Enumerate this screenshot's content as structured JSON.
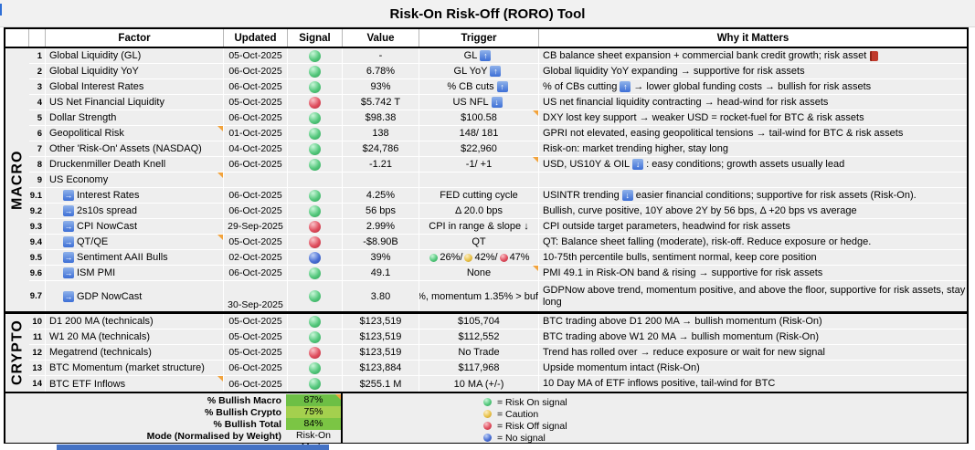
{
  "title": "Risk-On Risk-Off (RORO) Tool",
  "columns": [
    "Factor",
    "Updated",
    "Signal",
    "Value",
    "Trigger",
    "Why it Matters"
  ],
  "signal_colors": {
    "green": "#55c87d",
    "red": "#e04f5f",
    "blue": "#4a6fd4",
    "yellow": "#e8c24a"
  },
  "sections": [
    {
      "label": "MACRO",
      "rows": [
        {
          "num": "1",
          "factor": "Global Liquidity (GL)",
          "updated": "05-Oct-2025",
          "signal": "green",
          "value": "-",
          "trigger": "GL [up]",
          "why": "CB balance sheet expansion + commercial bank credit growth; risk asset [book]",
          "comments": []
        },
        {
          "num": "2",
          "factor": "Global Liquidity YoY",
          "updated": "06-Oct-2025",
          "signal": "green",
          "value": "6.78%",
          "trigger": "GL YoY [up]",
          "why": "Global liquidity YoY expanding → supportive for risk assets",
          "comments": []
        },
        {
          "num": "3",
          "factor": "Global Interest Rates",
          "updated": "06-Oct-2025",
          "signal": "green",
          "value": "93%",
          "trigger": "% CB cuts [up]",
          "why": "% of CBs cutting [up] → lower global funding costs → bullish for risk assets",
          "comments": []
        },
        {
          "num": "4",
          "factor": "US Net Financial Liquidity",
          "updated": "05-Oct-2025",
          "signal": "red",
          "value": "$5.742 T",
          "trigger": "US NFL [down]",
          "why": "US net financial liquidity contracting → head-wind for risk assets",
          "comments": []
        },
        {
          "num": "5",
          "factor": "Dollar Strength",
          "updated": "06-Oct-2025",
          "signal": "green",
          "value": "$98.38",
          "trigger": "$100.58",
          "why": "DXY lost key support → weaker USD = rocket-fuel for BTC & risk assets",
          "comments": [
            "trigger"
          ]
        },
        {
          "num": "6",
          "factor": "Geopolitical Risk",
          "updated": "01-Oct-2025",
          "signal": "green",
          "value": "138",
          "trigger": "148/ 181",
          "why": "GPRI not elevated, easing geopolitical tensions → tail-wind for BTC & risk assets",
          "comments": [
            "factor"
          ]
        },
        {
          "num": "7",
          "factor": "Other 'Risk-On' Assets (NASDAQ)",
          "updated": "04-Oct-2025",
          "signal": "green",
          "value": "$24,786",
          "trigger": "$22,960",
          "why": "Risk-on: market trending higher, stay long",
          "comments": []
        },
        {
          "num": "8",
          "factor": "Druckenmiller Death Knell",
          "updated": "06-Oct-2025",
          "signal": "green",
          "value": "-1.21",
          "trigger": "-1/ +1",
          "why": "USD, US10Y & OIL [down] : easy conditions; growth assets usually lead",
          "comments": [
            "trigger"
          ]
        },
        {
          "num": "9",
          "factor": "US Economy",
          "updated": "",
          "signal": "",
          "value": "",
          "trigger": "",
          "why": "",
          "comments": [
            "factor"
          ]
        },
        {
          "num": "9.1",
          "factor": "Interest Rates",
          "sub": true,
          "updated": "06-Oct-2025",
          "signal": "green",
          "value": "4.25%",
          "trigger": "FED cutting cycle",
          "why": "USINTR trending [down] easier financial conditions; supportive for risk assets (Risk-On).",
          "comments": []
        },
        {
          "num": "9.2",
          "factor": "2s10s spread",
          "sub": true,
          "updated": "06-Oct-2025",
          "signal": "green",
          "value": "56 bps",
          "trigger": "Δ 20.0 bps",
          "why": "Bullish, curve positive, 10Y above 2Y by 56 bps, Δ +20 bps vs average",
          "comments": []
        },
        {
          "num": "9.3",
          "factor": "CPI NowCast",
          "sub": true,
          "updated": "29-Sep-2025",
          "signal": "red",
          "value": "2.99%",
          "trigger": "CPI in range & slope ↓",
          "why": "CPI outside target parameters, headwind for risk assets",
          "comments": []
        },
        {
          "num": "9.4",
          "factor": "QT/QE",
          "sub": true,
          "updated": "05-Oct-2025",
          "signal": "red",
          "value": "-$8.90B",
          "trigger": "QT",
          "why": "QT: Balance sheet falling (moderate), risk-off. Reduce exposure or hedge.",
          "comments": [
            "factor"
          ]
        },
        {
          "num": "9.5",
          "factor": "Sentiment AAII Bulls",
          "sub": true,
          "updated": "02-Oct-2025",
          "signal": "blue",
          "value": "39%",
          "trigger": "[g]26%/ [y]42%/ [r]47%",
          "why": "10-75th percentile bulls, sentiment normal, keep core position",
          "comments": []
        },
        {
          "num": "9.6",
          "factor": "ISM PMI",
          "sub": true,
          "updated": "06-Oct-2025",
          "signal": "green",
          "value": "49.1",
          "trigger": "None",
          "why": "PMI 49.1 in Risk-ON band & rising → supportive for risk assets",
          "comments": [
            "trigger"
          ]
        },
        {
          "num": "9.7",
          "factor": "GDP NowCast",
          "sub": true,
          "tall": true,
          "updated": "30-Sep-2025",
          "signal": "green",
          "value": "3.80",
          "trigger": "%, momentum 1.35% > buff",
          "why": "GDPNow above trend, momentum positive, and above the floor, supportive for risk assets, stay long",
          "comments": []
        }
      ]
    },
    {
      "label": "CRYPTO",
      "rows": [
        {
          "num": "10",
          "factor": "D1 200 MA (technicals)",
          "updated": "05-Oct-2025",
          "signal": "green",
          "value": "$123,519",
          "trigger": "$105,704",
          "why": "BTC trading above D1 200 MA → bullish momentum (Risk-On)",
          "comments": [
            "updated"
          ]
        },
        {
          "num": "11",
          "factor": "W1 20 MA (technicals)",
          "updated": "05-Oct-2025",
          "signal": "green",
          "value": "$123,519",
          "trigger": "$112,552",
          "why": "BTC trading above W1 20 MA → bullish momentum (Risk-On)",
          "comments": [
            "updated"
          ]
        },
        {
          "num": "12",
          "factor": "Megatrend (technicals)",
          "updated": "05-Oct-2025",
          "signal": "red",
          "value": "$123,519",
          "trigger": "No Trade",
          "why": "Trend has rolled over → reduce exposure or wait for new signal",
          "comments": [
            "updated"
          ]
        },
        {
          "num": "13",
          "factor": "BTC Momentum (market structure)",
          "updated": "06-Oct-2025",
          "signal": "green",
          "value": "$123,884",
          "trigger": "$117,968",
          "why": "Upside momentum intact (Risk-On)",
          "comments": []
        },
        {
          "num": "14",
          "factor": "BTC ETF Inflows",
          "updated": "06-Oct-2025",
          "signal": "green",
          "value": "$255.1 M",
          "trigger": "10 MA (+/-)",
          "why": "10 Day MA of ETF inflows positive, tail-wind for BTC",
          "comments": [
            "factor"
          ]
        }
      ]
    }
  ],
  "footer": {
    "rows": [
      {
        "label": "% Bullish Macro",
        "value": "87%",
        "color": "#6dbf45",
        "comment": true
      },
      {
        "label": "% Bullish Crypto",
        "value": "75%",
        "color": "#a4d04e",
        "comment": false
      },
      {
        "label": "% Bullish Total",
        "value": "84%",
        "color": "#7bc544",
        "comment": false
      },
      {
        "label": "Mode (Normalised by Weight)",
        "value": "Risk-On Mode",
        "color": "",
        "comment": false
      }
    ]
  },
  "legend": [
    {
      "color": "green",
      "text": "= Risk On signal"
    },
    {
      "color": "yellow",
      "text": "= Caution"
    },
    {
      "color": "red",
      "text": "= Risk Off signal"
    },
    {
      "color": "blue",
      "text": "= No signal"
    }
  ]
}
